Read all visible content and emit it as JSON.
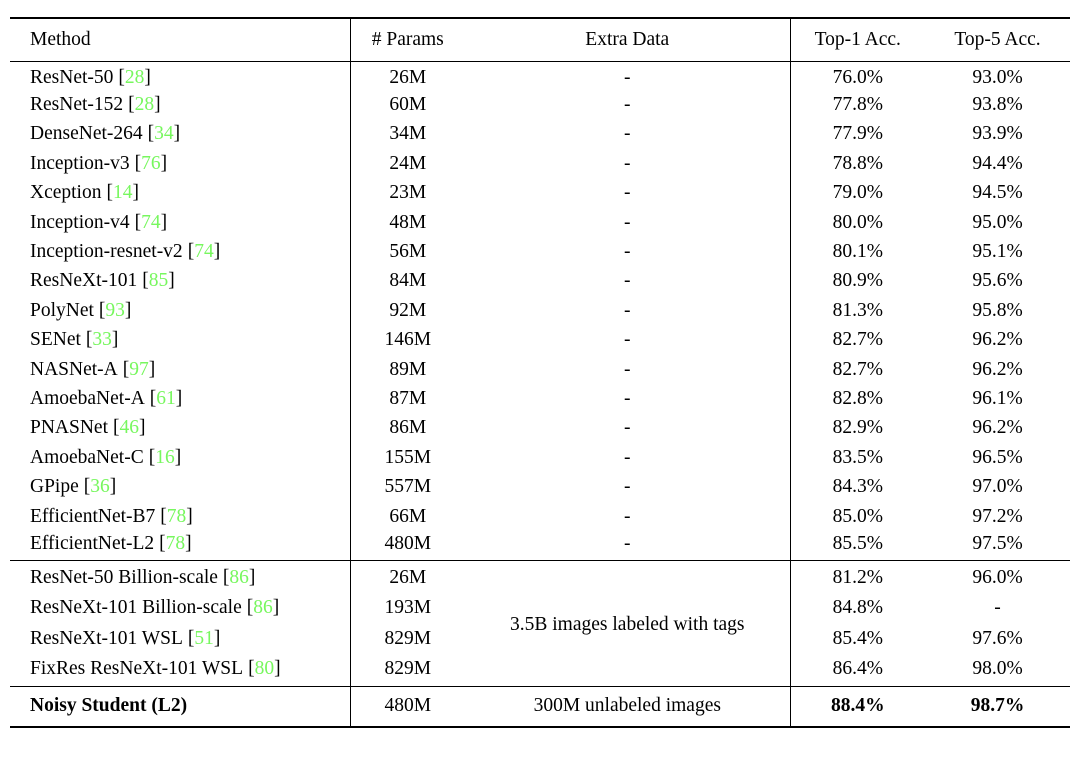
{
  "table": {
    "citation_color": "#77F75E",
    "text_color": "#000000",
    "cite_open": "[",
    "cite_close": "]",
    "columns": [
      "Method",
      "# Params",
      "Extra Data",
      "Top-1 Acc.",
      "Top-5 Acc."
    ],
    "sections": [
      {
        "rows": [
          {
            "method": "ResNet-50",
            "cite": "28",
            "params": "26M",
            "extra": "-",
            "top1": "76.0%",
            "top5": "93.0%"
          },
          {
            "method": "ResNet-152",
            "cite": "28",
            "params": "60M",
            "extra": "-",
            "top1": "77.8%",
            "top5": "93.8%"
          },
          {
            "method": "DenseNet-264",
            "cite": "34",
            "params": "34M",
            "extra": "-",
            "top1": "77.9%",
            "top5": "93.9%"
          },
          {
            "method": "Inception-v3",
            "cite": "76",
            "params": "24M",
            "extra": "-",
            "top1": "78.8%",
            "top5": "94.4%"
          },
          {
            "method": "Xception",
            "cite": "14",
            "params": "23M",
            "extra": "-",
            "top1": "79.0%",
            "top5": "94.5%"
          },
          {
            "method": "Inception-v4",
            "cite": "74",
            "params": "48M",
            "extra": "-",
            "top1": "80.0%",
            "top5": "95.0%"
          },
          {
            "method": "Inception-resnet-v2",
            "cite": "74",
            "params": "56M",
            "extra": "-",
            "top1": "80.1%",
            "top5": "95.1%"
          },
          {
            "method": "ResNeXt-101",
            "cite": "85",
            "params": "84M",
            "extra": "-",
            "top1": "80.9%",
            "top5": "95.6%"
          },
          {
            "method": "PolyNet",
            "cite": "93",
            "params": "92M",
            "extra": "-",
            "top1": "81.3%",
            "top5": "95.8%"
          },
          {
            "method": "SENet",
            "cite": "33",
            "params": "146M",
            "extra": "-",
            "top1": "82.7%",
            "top5": "96.2%"
          },
          {
            "method": "NASNet-A",
            "cite": "97",
            "params": "89M",
            "extra": "-",
            "top1": "82.7%",
            "top5": "96.2%"
          },
          {
            "method": "AmoebaNet-A",
            "cite": "61",
            "params": "87M",
            "extra": "-",
            "top1": "82.8%",
            "top5": "96.1%"
          },
          {
            "method": "PNASNet",
            "cite": "46",
            "params": "86M",
            "extra": "-",
            "top1": "82.9%",
            "top5": "96.2%"
          },
          {
            "method": "AmoebaNet-C",
            "cite": "16",
            "params": "155M",
            "extra": "-",
            "top1": "83.5%",
            "top5": "96.5%"
          },
          {
            "method": "GPipe",
            "cite": "36",
            "params": "557M",
            "extra": "-",
            "top1": "84.3%",
            "top5": "97.0%"
          },
          {
            "method": "EfficientNet-B7",
            "cite": "78",
            "params": "66M",
            "extra": "-",
            "top1": "85.0%",
            "top5": "97.2%"
          },
          {
            "method": "EfficientNet-L2",
            "cite": "78",
            "params": "480M",
            "extra": "-",
            "top1": "85.5%",
            "top5": "97.5%"
          }
        ]
      },
      {
        "extra_shared": "3.5B images labeled with tags",
        "rows": [
          {
            "method": "ResNet-50 Billion-scale",
            "cite": "86",
            "params": "26M",
            "top1": "81.2%",
            "top5": "96.0%"
          },
          {
            "method": "ResNeXt-101 Billion-scale",
            "cite": "86",
            "params": "193M",
            "top1": "84.8%",
            "top5": "-"
          },
          {
            "method": "ResNeXt-101 WSL",
            "cite": "51",
            "params": "829M",
            "top1": "85.4%",
            "top5": "97.6%"
          },
          {
            "method": "FixRes ResNeXt-101 WSL",
            "cite": "80",
            "params": "829M",
            "top1": "86.4%",
            "top5": "98.0%"
          }
        ]
      },
      {
        "bold": true,
        "rows": [
          {
            "method": "Noisy Student (L2)",
            "cite": null,
            "params": "480M",
            "extra": "300M unlabeled images",
            "top1": "88.4%",
            "top5": "98.7%"
          }
        ]
      }
    ]
  }
}
